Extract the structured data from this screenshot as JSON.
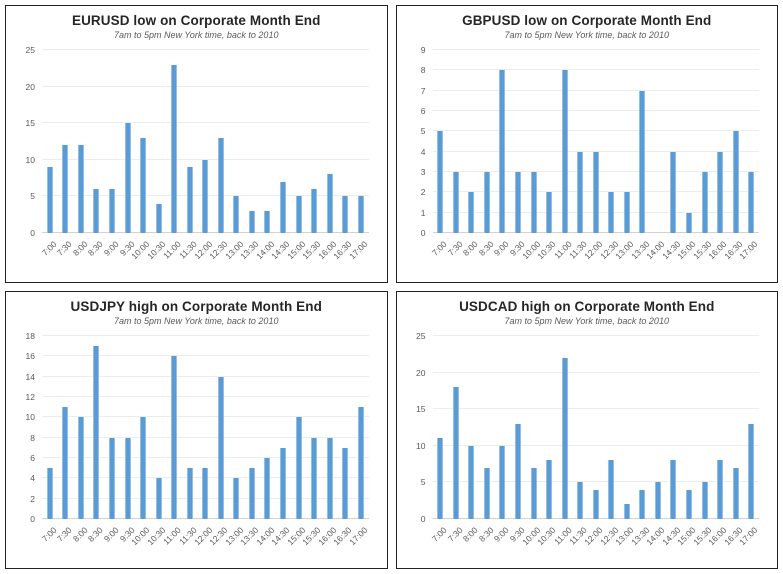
{
  "accent_color": "#5b9bd5",
  "gridline_color": "#ececec",
  "text_color": "#262626",
  "axis_label_color": "#595959",
  "chart_data": [
    {
      "type": "bar",
      "title": "EURUSD low on Corporate Month End",
      "subtitle": "7am to 5pm New York time, back to 2010",
      "categories": [
        "7:00",
        "7:30",
        "8:00",
        "8:30",
        "9:00",
        "9:30",
        "10:00",
        "10:30",
        "11:00",
        "11:30",
        "12:00",
        "12:30",
        "13:00",
        "13:30",
        "14:00",
        "14:30",
        "15:00",
        "15:30",
        "16:00",
        "16:30",
        "17:00"
      ],
      "values": [
        9,
        12,
        12,
        6,
        6,
        15,
        13,
        4,
        23,
        9,
        10,
        13,
        5,
        3,
        3,
        7,
        5,
        6,
        8,
        5,
        5
      ],
      "xlabel": "",
      "ylabel": "",
      "ylim": [
        0,
        25
      ],
      "ytick_step": 5,
      "grid": true,
      "legend": false
    },
    {
      "type": "bar",
      "title": "GBPUSD low on Corporate Month End",
      "subtitle": "7am to 5pm New York time, back to 2010",
      "categories": [
        "7:00",
        "7:30",
        "8:00",
        "8:30",
        "9:00",
        "9:30",
        "10:00",
        "10:30",
        "11:00",
        "11:30",
        "12:00",
        "12:30",
        "13:00",
        "13:30",
        "14:00",
        "14:30",
        "15:00",
        "15:30",
        "16:00",
        "16:30",
        "17:00"
      ],
      "values": [
        5,
        3,
        2,
        3,
        8,
        3,
        3,
        2,
        8,
        4,
        4,
        2,
        2,
        7,
        0,
        4,
        1,
        3,
        4,
        5,
        3
      ],
      "xlabel": "",
      "ylabel": "",
      "ylim": [
        0,
        9
      ],
      "ytick_step": 1,
      "grid": true,
      "legend": false
    },
    {
      "type": "bar",
      "title": "USDJPY high on Corporate Month End",
      "subtitle": "7am to 5pm New York time, back to 2010",
      "categories": [
        "7:00",
        "7:30",
        "8:00",
        "8:30",
        "9:00",
        "9:30",
        "10:00",
        "10:30",
        "11:00",
        "11:30",
        "12:00",
        "12:30",
        "13:00",
        "13:30",
        "14:00",
        "14:30",
        "15:00",
        "15:30",
        "16:00",
        "16:30",
        "17:00"
      ],
      "values": [
        5,
        11,
        10,
        17,
        8,
        8,
        10,
        4,
        16,
        5,
        5,
        14,
        4,
        5,
        6,
        7,
        10,
        8,
        8,
        7,
        11
      ],
      "xlabel": "",
      "ylabel": "",
      "ylim": [
        0,
        18
      ],
      "ytick_step": 2,
      "grid": true,
      "legend": false
    },
    {
      "type": "bar",
      "title": "USDCAD high on Corporate Month End",
      "subtitle": "7am to 5pm New York time, back to 2010",
      "categories": [
        "7:00",
        "7:30",
        "8:00",
        "8:30",
        "9:00",
        "9:30",
        "10:00",
        "10:30",
        "11:00",
        "11:30",
        "12:00",
        "12:30",
        "13:00",
        "13:30",
        "14:00",
        "14:30",
        "15:00",
        "15:30",
        "16:00",
        "16:30",
        "17:00"
      ],
      "values": [
        11,
        18,
        10,
        7,
        10,
        13,
        7,
        8,
        22,
        5,
        4,
        8,
        2,
        4,
        5,
        8,
        4,
        5,
        8,
        7,
        13
      ],
      "xlabel": "",
      "ylabel": "",
      "ylim": [
        0,
        25
      ],
      "ytick_step": 5,
      "grid": true,
      "legend": false
    }
  ]
}
